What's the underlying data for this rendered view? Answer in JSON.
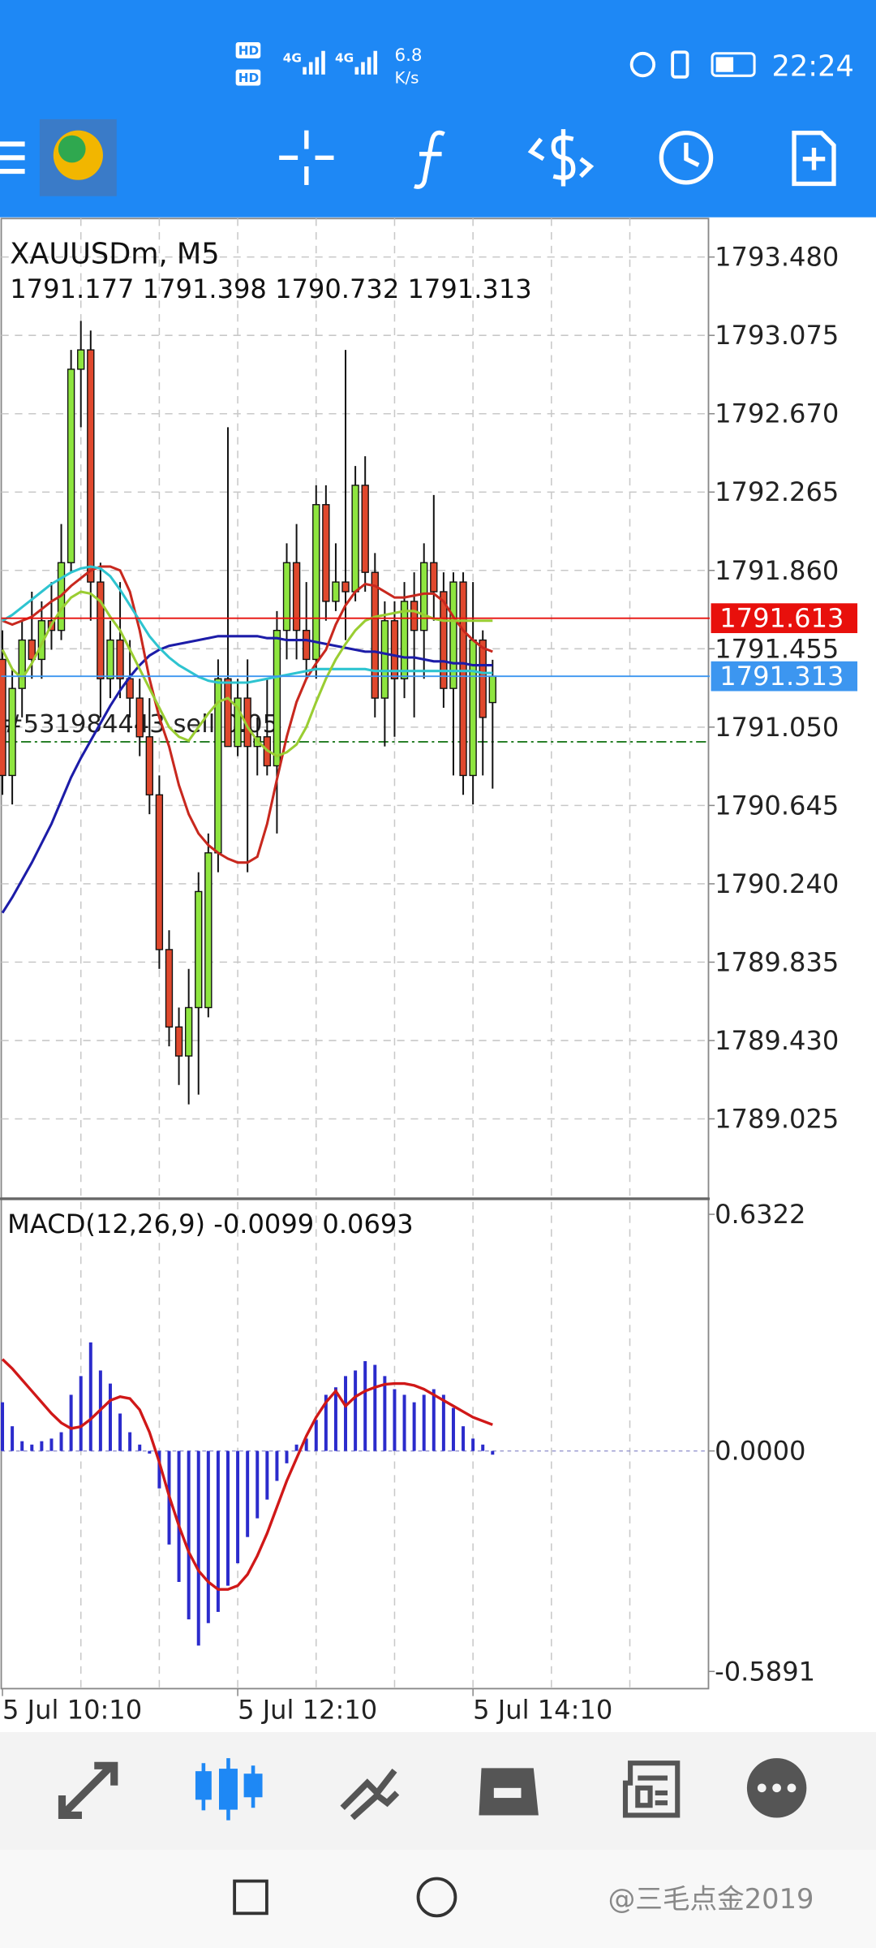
{
  "status_bar": {
    "hd_1": "HD",
    "hd_2": "HD",
    "signal_1": "4G",
    "signal_2": "4G",
    "speed": "6.8",
    "speed_unit": "K/s",
    "time": "22:24"
  },
  "chart_data": [
    {
      "type": "candlestick",
      "title": "XAUUSDm, M5",
      "subtitle": "1791.177 1791.398 1790.732 1791.313",
      "bull_color": "#8ee53f",
      "bear_color": "#e0482d",
      "candles": [
        [
          1791.4,
          1791.55,
          1790.7,
          1790.8
        ],
        [
          1790.8,
          1791.35,
          1790.65,
          1791.25
        ],
        [
          1791.25,
          1791.6,
          1791.1,
          1791.5
        ],
        [
          1791.5,
          1791.75,
          1791.3,
          1791.4
        ],
        [
          1791.4,
          1791.7,
          1791.3,
          1791.6
        ],
        [
          1791.6,
          1791.8,
          1791.45,
          1791.55
        ],
        [
          1791.55,
          1792.1,
          1791.5,
          1791.9
        ],
        [
          1791.9,
          1793.0,
          1791.85,
          1792.9
        ],
        [
          1792.9,
          1793.15,
          1792.6,
          1793.0
        ],
        [
          1793.0,
          1793.1,
          1791.6,
          1791.8
        ],
        [
          1791.8,
          1791.9,
          1791.1,
          1791.3
        ],
        [
          1791.3,
          1791.6,
          1791.2,
          1791.5
        ],
        [
          1791.5,
          1791.8,
          1791.2,
          1791.3
        ],
        [
          1791.3,
          1791.5,
          1791.1,
          1791.2
        ],
        [
          1791.2,
          1791.3,
          1790.9,
          1791.0
        ],
        [
          1791.0,
          1791.2,
          1790.6,
          1790.7
        ],
        [
          1790.7,
          1790.8,
          1789.8,
          1789.9
        ],
        [
          1789.9,
          1790.0,
          1789.4,
          1789.5
        ],
        [
          1789.5,
          1789.6,
          1789.2,
          1789.35
        ],
        [
          1789.35,
          1789.8,
          1789.1,
          1789.6
        ],
        [
          1789.6,
          1790.3,
          1789.15,
          1790.2
        ],
        [
          1789.6,
          1790.5,
          1789.55,
          1790.4
        ],
        [
          1790.4,
          1791.4,
          1790.3,
          1791.3
        ],
        [
          1791.3,
          1792.6,
          1790.95,
          1790.95
        ],
        [
          1790.95,
          1791.3,
          1790.9,
          1791.2
        ],
        [
          1791.2,
          1791.4,
          1790.3,
          1790.95
        ],
        [
          1790.95,
          1791.1,
          1790.8,
          1791.0
        ],
        [
          1791.0,
          1791.3,
          1790.8,
          1790.85
        ],
        [
          1790.85,
          1791.65,
          1790.5,
          1791.55
        ],
        [
          1791.55,
          1792.0,
          1791.4,
          1791.9
        ],
        [
          1791.9,
          1792.1,
          1791.4,
          1791.55
        ],
        [
          1791.55,
          1791.8,
          1791.3,
          1791.4
        ],
        [
          1791.4,
          1792.3,
          1791.3,
          1792.2
        ],
        [
          1792.2,
          1792.3,
          1791.6,
          1791.7
        ],
        [
          1791.7,
          1792.0,
          1791.65,
          1791.8
        ],
        [
          1791.8,
          1793.0,
          1791.5,
          1791.75
        ],
        [
          1791.75,
          1792.4,
          1791.7,
          1792.3
        ],
        [
          1792.3,
          1792.45,
          1791.75,
          1791.85
        ],
        [
          1791.85,
          1791.95,
          1791.1,
          1791.2
        ],
        [
          1791.2,
          1791.7,
          1790.95,
          1791.6
        ],
        [
          1791.6,
          1791.7,
          1791.0,
          1791.3
        ],
        [
          1791.3,
          1791.8,
          1791.2,
          1791.7
        ],
        [
          1791.7,
          1791.85,
          1791.1,
          1791.55
        ],
        [
          1791.55,
          1792.0,
          1791.3,
          1791.9
        ],
        [
          1791.9,
          1792.25,
          1791.6,
          1791.75
        ],
        [
          1791.75,
          1791.85,
          1791.15,
          1791.25
        ],
        [
          1791.25,
          1791.85,
          1790.8,
          1791.8
        ],
        [
          1791.8,
          1791.85,
          1790.7,
          1790.8
        ],
        [
          1790.8,
          1791.8,
          1790.65,
          1791.5
        ],
        [
          1791.5,
          1791.55,
          1790.8,
          1791.1
        ],
        [
          1791.177,
          1791.398,
          1790.732,
          1791.313
        ]
      ],
      "series": [
        {
          "color": "#1c1ca8",
          "values": [
            1790.09,
            1790.17,
            1790.26,
            1790.35,
            1790.45,
            1790.55,
            1790.67,
            1790.79,
            1790.89,
            1790.98,
            1791.07,
            1791.16,
            1791.24,
            1791.31,
            1791.37,
            1791.42,
            1791.45,
            1791.47,
            1791.48,
            1791.49,
            1791.5,
            1791.51,
            1791.52,
            1791.52,
            1791.52,
            1791.52,
            1791.52,
            1791.51,
            1791.51,
            1791.5,
            1791.5,
            1791.5,
            1791.49,
            1791.48,
            1791.47,
            1791.46,
            1791.45,
            1791.44,
            1791.44,
            1791.43,
            1791.42,
            1791.41,
            1791.41,
            1791.4,
            1791.39,
            1791.39,
            1791.38,
            1791.38,
            1791.37,
            1791.37,
            1791.37
          ]
        },
        {
          "color": "#c8281e",
          "values": [
            1791.6,
            1791.58,
            1791.6,
            1791.62,
            1791.66,
            1791.7,
            1791.73,
            1791.78,
            1791.82,
            1791.86,
            1791.88,
            1791.88,
            1791.86,
            1791.75,
            1791.55,
            1791.3,
            1791.1,
            1790.95,
            1790.75,
            1790.6,
            1790.5,
            1790.44,
            1790.4,
            1790.37,
            1790.35,
            1790.35,
            1790.38,
            1790.55,
            1790.78,
            1791.0,
            1791.18,
            1791.3,
            1791.38,
            1791.45,
            1791.58,
            1791.68,
            1791.75,
            1791.79,
            1791.78,
            1791.75,
            1791.72,
            1791.72,
            1791.73,
            1791.74,
            1791.74,
            1791.7,
            1791.62,
            1791.55,
            1791.5,
            1791.46,
            1791.44
          ]
        },
        {
          "color": "#2ec4d0",
          "values": [
            1791.6,
            1791.63,
            1791.67,
            1791.71,
            1791.75,
            1791.79,
            1791.82,
            1791.85,
            1791.87,
            1791.88,
            1791.87,
            1791.83,
            1791.76,
            1791.68,
            1791.6,
            1791.52,
            1791.46,
            1791.41,
            1791.37,
            1791.34,
            1791.31,
            1791.29,
            1791.28,
            1791.28,
            1791.28,
            1791.28,
            1791.29,
            1791.3,
            1791.31,
            1791.32,
            1791.33,
            1791.34,
            1791.35,
            1791.35,
            1791.35,
            1791.35,
            1791.35,
            1791.35,
            1791.34,
            1791.34,
            1791.34,
            1791.34,
            1791.34,
            1791.34,
            1791.34,
            1791.34,
            1791.34,
            1791.34,
            1791.34,
            1791.33,
            1791.33
          ]
        },
        {
          "color": "#9acd32",
          "values": [
            1791.45,
            1791.35,
            1791.3,
            1791.38,
            1791.48,
            1791.58,
            1791.66,
            1791.72,
            1791.75,
            1791.74,
            1791.7,
            1791.62,
            1791.55,
            1791.45,
            1791.35,
            1791.25,
            1791.15,
            1791.05,
            1791.0,
            1790.98,
            1791.05,
            1791.12,
            1791.18,
            1791.2,
            1791.15,
            1791.05,
            1790.98,
            1790.93,
            1790.9,
            1790.92,
            1790.96,
            1791.05,
            1791.18,
            1791.3,
            1791.4,
            1791.48,
            1791.55,
            1791.6,
            1791.62,
            1791.63,
            1791.64,
            1791.65,
            1791.65,
            1791.63,
            1791.61,
            1791.6,
            1791.6,
            1791.6,
            1791.6,
            1791.6,
            1791.6
          ]
        }
      ],
      "xlim": [
        -0.25,
        72.15
      ],
      "ylim": [
        1788.615,
        1793.679
      ],
      "yticks": [
        {
          "value": 1793.48,
          "label": "1793.480"
        },
        1793.075,
        {
          "value": 1792.67,
          "label": "1792.670"
        },
        1792.265,
        {
          "value": 1791.86,
          "label": "1791.860"
        },
        1791.455,
        {
          "value": 1791.05,
          "label": "1791.050"
        },
        1790.645,
        {
          "value": 1790.24,
          "label": "1790.240"
        },
        1789.835,
        {
          "value": 1789.43,
          "label": "1789.430"
        },
        1789.025
      ],
      "xgrid": [
        8,
        16,
        24,
        32,
        40,
        48,
        56,
        64
      ],
      "grid": true,
      "price_lines": [
        {
          "value": 1791.613,
          "label": "1791.613",
          "color": "#e8100c"
        },
        {
          "value": 1791.313,
          "label": "1791.313",
          "color": "#3c96f0"
        }
      ],
      "order_line": {
        "value": 1790.974,
        "label": "#531984443 sell 0.05",
        "color": "#1e7a1e"
      }
    },
    {
      "type": "macd",
      "title": "MACD(12,26,9) -0.0099 0.0693",
      "histogram": {
        "color": "#2b2bcc",
        "values": [
          0.13,
          0.066,
          0.026,
          0.017,
          0.026,
          0.033,
          0.05,
          0.15,
          0.2,
          0.29,
          0.215,
          0.18,
          0.1,
          0.05,
          0.017,
          -0.007,
          -0.1,
          -0.25,
          -0.35,
          -0.45,
          -0.52,
          -0.46,
          -0.43,
          -0.36,
          -0.3,
          -0.23,
          -0.18,
          -0.13,
          -0.08,
          -0.033,
          0.017,
          0.033,
          0.083,
          0.15,
          0.17,
          0.2,
          0.215,
          0.24,
          0.23,
          0.2,
          0.165,
          0.15,
          0.13,
          0.15,
          0.165,
          0.15,
          0.115,
          0.066,
          0.033,
          0.017,
          -0.01
        ]
      },
      "signal": {
        "color": "#d01818",
        "values": [
          0.245,
          0.22,
          0.19,
          0.16,
          0.13,
          0.1,
          0.075,
          0.06,
          0.065,
          0.085,
          0.11,
          0.135,
          0.145,
          0.14,
          0.11,
          0.05,
          -0.03,
          -0.12,
          -0.2,
          -0.27,
          -0.32,
          -0.35,
          -0.37,
          -0.37,
          -0.36,
          -0.33,
          -0.28,
          -0.22,
          -0.15,
          -0.08,
          -0.02,
          0.04,
          0.09,
          0.13,
          0.16,
          0.12,
          0.145,
          0.16,
          0.17,
          0.178,
          0.18,
          0.18,
          0.175,
          0.165,
          0.15,
          0.135,
          0.12,
          0.105,
          0.09,
          0.08,
          0.07
        ]
      },
      "xlim": [
        -0.25,
        72.15
      ],
      "ylim": [
        -0.635,
        0.672
      ],
      "yticks": [
        0.6322,
        {
          "value": 0,
          "label": "0.0000"
        },
        -0.5891
      ],
      "xticks": [
        {
          "value": 0,
          "label": "5 Jul 10:10"
        },
        {
          "value": 24,
          "label": "5 Jul 12:10"
        },
        {
          "value": 48,
          "label": "5 Jul 14:10"
        }
      ]
    }
  ],
  "watermark": "@三毛点金2019"
}
